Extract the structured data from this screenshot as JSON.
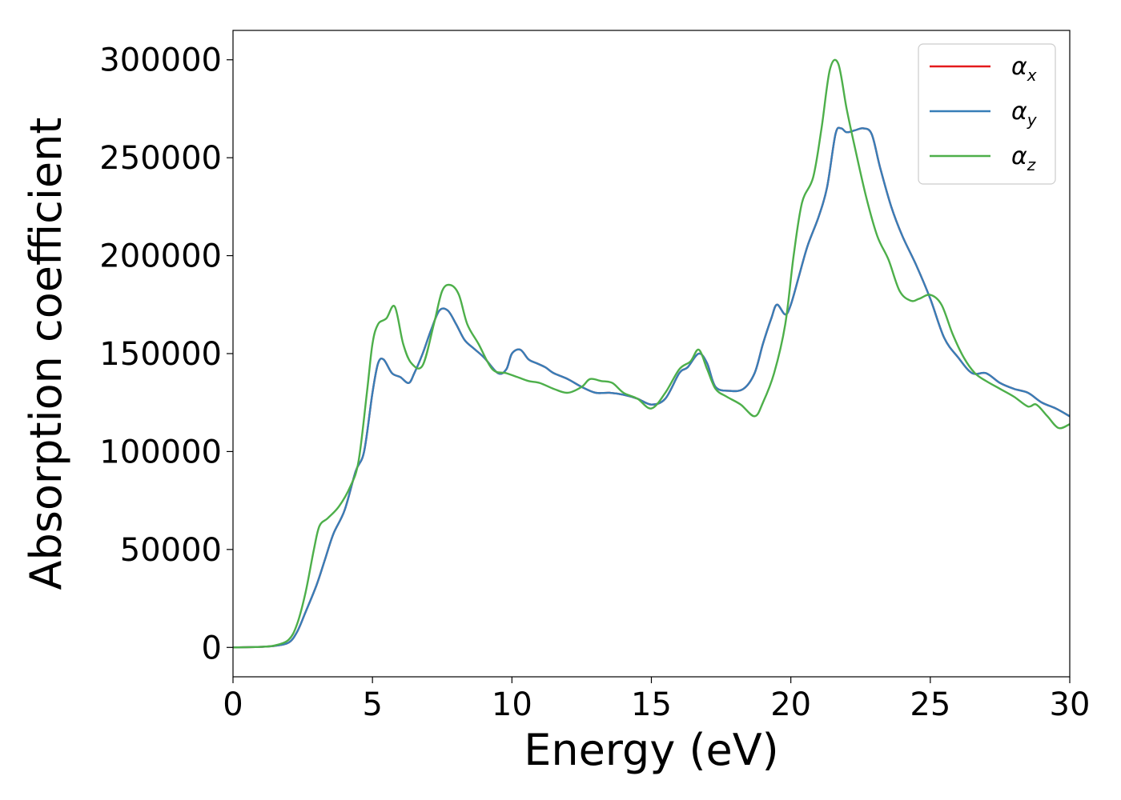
{
  "chart_data": {
    "type": "line",
    "xlabel": "Energy (eV)",
    "ylabel": "Absorption coefficient",
    "xlim": [
      0,
      30
    ],
    "ylim": [
      -15000,
      315000
    ],
    "xticks": [
      0,
      5,
      10,
      15,
      20,
      25,
      30
    ],
    "yticks": [
      0,
      50000,
      100000,
      150000,
      200000,
      250000,
      300000
    ],
    "xtick_labels": [
      "0",
      "5",
      "10",
      "15",
      "20",
      "25",
      "30"
    ],
    "ytick_labels": [
      "0",
      "50000",
      "100000",
      "150000",
      "200000",
      "250000",
      "300000"
    ],
    "grid": false,
    "legend_position": "top-right",
    "series": [
      {
        "name": "αx",
        "symbol": "α",
        "subscript": "x",
        "color": "#e41a1c",
        "x": [
          0,
          1,
          1.5,
          2,
          2.3,
          2.6,
          3,
          3.3,
          3.6,
          4,
          4.4,
          4.7,
          5,
          5.2,
          5.4,
          5.7,
          6,
          6.3,
          6.5,
          6.8,
          7.1,
          7.4,
          7.7,
          8,
          8.3,
          8.6,
          9,
          9.5,
          9.8,
          10,
          10.3,
          10.6,
          10.9,
          11.2,
          11.5,
          12,
          12.5,
          13,
          13.5,
          14,
          14.5,
          15,
          15.5,
          16,
          16.3,
          16.7,
          17,
          17.3,
          17.8,
          18.3,
          18.7,
          19,
          19.3,
          19.5,
          19.8,
          20,
          20.3,
          20.6,
          21,
          21.3,
          21.6,
          21.8,
          22,
          22.3,
          22.6,
          22.9,
          23.2,
          23.6,
          24,
          24.5,
          25,
          25.5,
          26,
          26.5,
          27,
          27.5,
          28,
          28.5,
          29,
          29.5,
          30
        ],
        "values": [
          0,
          300,
          800,
          2500,
          8000,
          18000,
          32000,
          45000,
          58000,
          70000,
          90000,
          100000,
          130000,
          145000,
          147000,
          140000,
          138000,
          135000,
          140000,
          150000,
          162000,
          172000,
          172000,
          165000,
          157000,
          153000,
          148000,
          140000,
          142000,
          150000,
          152000,
          147000,
          145000,
          143000,
          140000,
          137000,
          133000,
          130000,
          130000,
          129000,
          127000,
          124000,
          127000,
          140000,
          143000,
          150000,
          145000,
          133000,
          131000,
          132000,
          140000,
          155000,
          168000,
          175000,
          170000,
          175000,
          190000,
          205000,
          220000,
          235000,
          262000,
          265000,
          263000,
          264000,
          265000,
          262000,
          245000,
          225000,
          210000,
          195000,
          178000,
          158000,
          148000,
          140000,
          140000,
          135000,
          132000,
          130000,
          125000,
          122000,
          118000
        ]
      },
      {
        "name": "αy",
        "symbol": "α",
        "subscript": "y",
        "color": "#377eb8",
        "x": [
          0,
          1,
          1.5,
          2,
          2.3,
          2.6,
          3,
          3.3,
          3.6,
          4,
          4.4,
          4.7,
          5,
          5.2,
          5.4,
          5.7,
          6,
          6.3,
          6.5,
          6.8,
          7.1,
          7.4,
          7.7,
          8,
          8.3,
          8.6,
          9,
          9.5,
          9.8,
          10,
          10.3,
          10.6,
          10.9,
          11.2,
          11.5,
          12,
          12.5,
          13,
          13.5,
          14,
          14.5,
          15,
          15.5,
          16,
          16.3,
          16.7,
          17,
          17.3,
          17.8,
          18.3,
          18.7,
          19,
          19.3,
          19.5,
          19.8,
          20,
          20.3,
          20.6,
          21,
          21.3,
          21.6,
          21.8,
          22,
          22.3,
          22.6,
          22.9,
          23.2,
          23.6,
          24,
          24.5,
          25,
          25.5,
          26,
          26.5,
          27,
          27.5,
          28,
          28.5,
          29,
          29.5,
          30
        ],
        "values": [
          0,
          300,
          800,
          2500,
          8000,
          18000,
          32000,
          45000,
          58000,
          70000,
          90000,
          100000,
          130000,
          145000,
          147000,
          140000,
          138000,
          135000,
          140000,
          150000,
          162000,
          172000,
          172000,
          165000,
          157000,
          153000,
          148000,
          140000,
          142000,
          150000,
          152000,
          147000,
          145000,
          143000,
          140000,
          137000,
          133000,
          130000,
          130000,
          129000,
          127000,
          124000,
          127000,
          140000,
          143000,
          150000,
          145000,
          133000,
          131000,
          132000,
          140000,
          155000,
          168000,
          175000,
          170000,
          175000,
          190000,
          205000,
          220000,
          235000,
          262000,
          265000,
          263000,
          264000,
          265000,
          262000,
          245000,
          225000,
          210000,
          195000,
          178000,
          158000,
          148000,
          140000,
          140000,
          135000,
          132000,
          130000,
          125000,
          122000,
          118000
        ]
      },
      {
        "name": "αz",
        "symbol": "α",
        "subscript": "z",
        "color": "#4daf4a",
        "x": [
          0,
          1,
          1.5,
          2,
          2.3,
          2.6,
          2.9,
          3.1,
          3.4,
          3.8,
          4.2,
          4.5,
          4.8,
          5,
          5.2,
          5.5,
          5.8,
          6.1,
          6.4,
          6.8,
          7.2,
          7.5,
          7.8,
          8.1,
          8.4,
          8.8,
          9.3,
          9.8,
          10.2,
          10.6,
          11,
          11.5,
          12,
          12.5,
          12.8,
          13.2,
          13.6,
          14,
          14.5,
          15,
          15.5,
          16,
          16.4,
          16.7,
          17,
          17.3,
          17.7,
          18.2,
          18.7,
          19,
          19.4,
          19.8,
          20.1,
          20.4,
          20.8,
          21.1,
          21.4,
          21.7,
          22,
          22.3,
          22.7,
          23.1,
          23.5,
          23.9,
          24.3,
          24.6,
          25,
          25.4,
          25.8,
          26.2,
          26.6,
          27,
          27.5,
          28,
          28.5,
          28.8,
          29.2,
          29.6,
          30
        ],
        "values": [
          0,
          300,
          1000,
          4000,
          12000,
          28000,
          50000,
          62000,
          66000,
          72000,
          82000,
          95000,
          130000,
          155000,
          165000,
          168000,
          174000,
          155000,
          145000,
          144000,
          165000,
          182000,
          185000,
          180000,
          165000,
          155000,
          142000,
          140000,
          138000,
          136000,
          135000,
          132000,
          130000,
          133000,
          137000,
          136000,
          135000,
          130000,
          127000,
          122000,
          130000,
          142000,
          146000,
          152000,
          142000,
          132000,
          128000,
          124000,
          118000,
          125000,
          140000,
          165000,
          200000,
          227000,
          240000,
          265000,
          295000,
          298000,
          275000,
          255000,
          230000,
          210000,
          198000,
          182000,
          177000,
          178000,
          180000,
          175000,
          160000,
          148000,
          140000,
          136000,
          132000,
          128000,
          123000,
          124000,
          118000,
          112000,
          114000
        ]
      }
    ]
  }
}
